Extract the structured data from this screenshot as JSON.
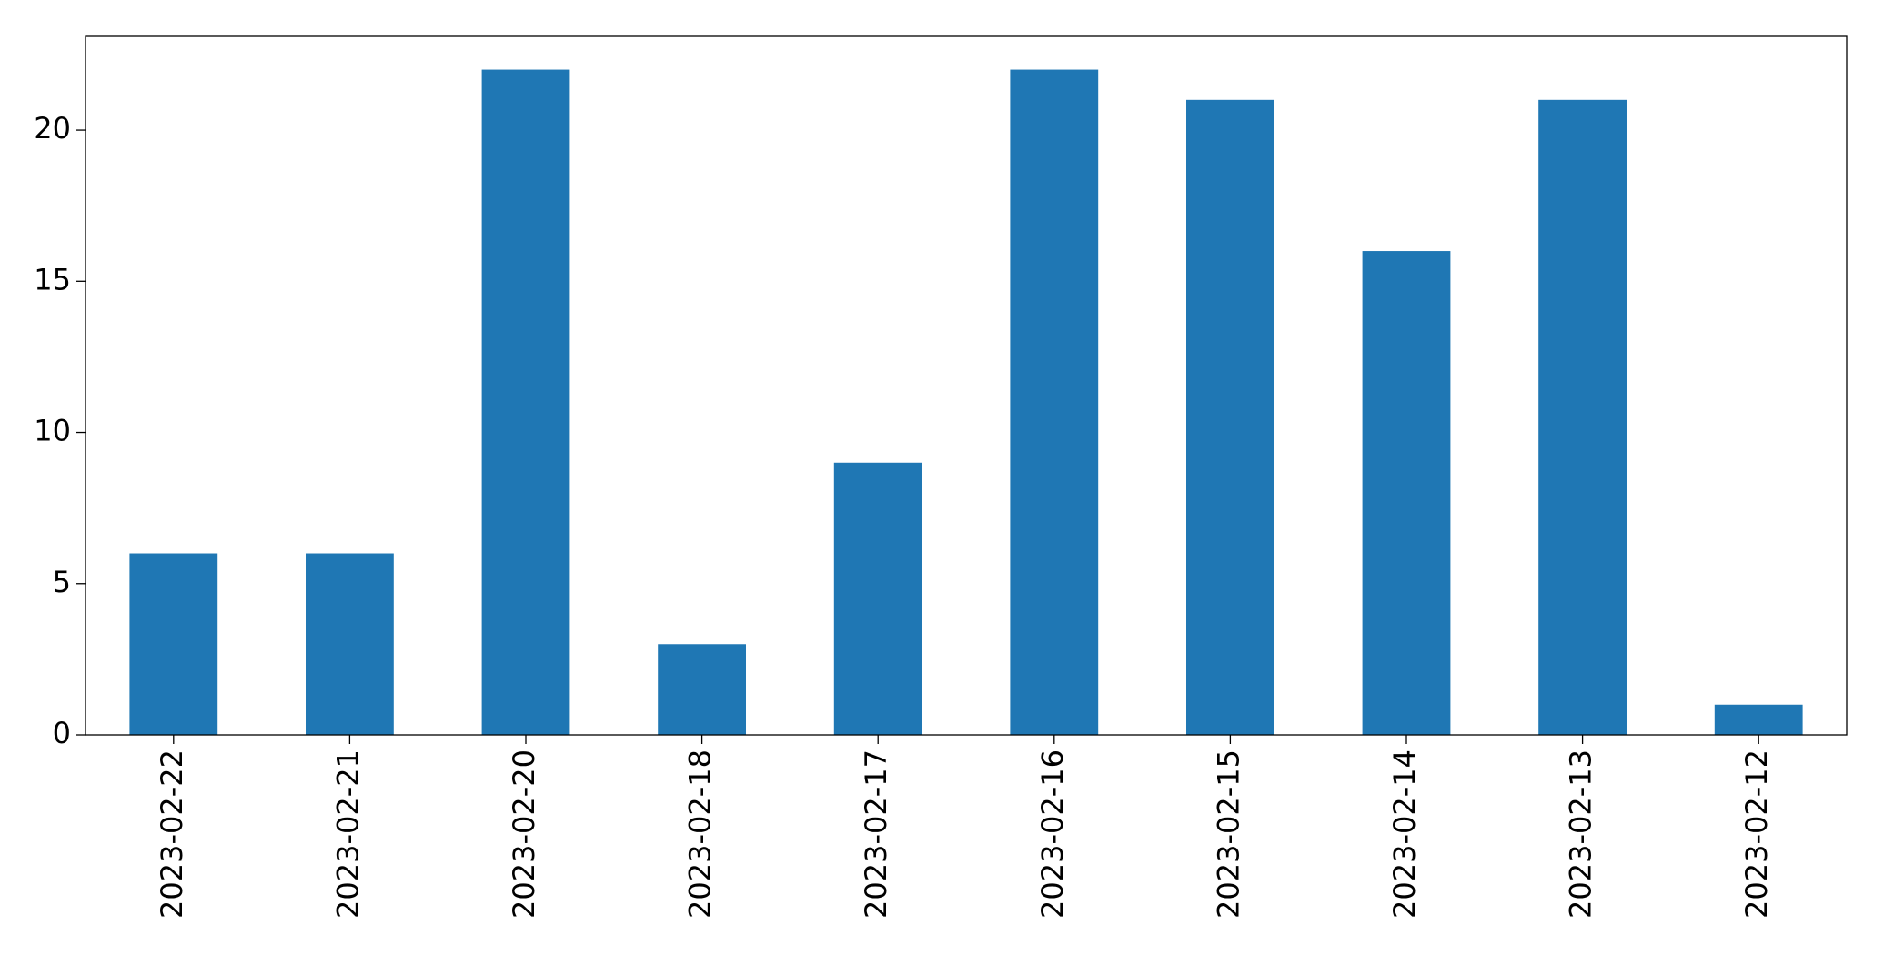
{
  "chart_data": {
    "type": "bar",
    "categories": [
      "2023-02-22",
      "2023-02-21",
      "2023-02-20",
      "2023-02-18",
      "2023-02-17",
      "2023-02-16",
      "2023-02-15",
      "2023-02-14",
      "2023-02-13",
      "2023-02-12"
    ],
    "values": [
      6,
      6,
      22,
      3,
      9,
      22,
      21,
      16,
      21,
      1
    ],
    "color": "#1f77b4",
    "ylim": [
      0,
      23.1
    ],
    "yticks": [
      0,
      5,
      10,
      15,
      20
    ],
    "grid": false
  }
}
